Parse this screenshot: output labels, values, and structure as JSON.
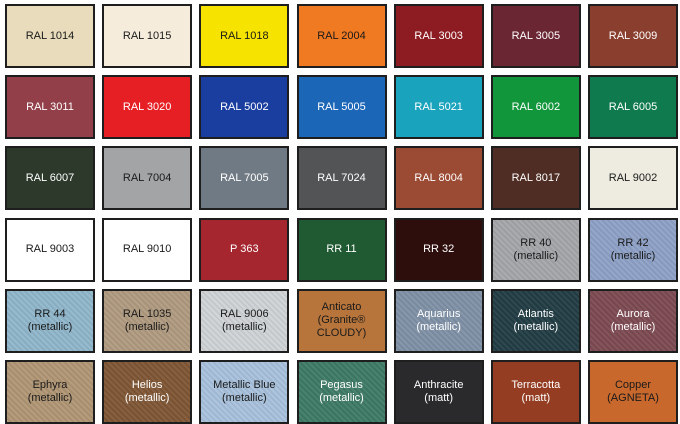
{
  "swatches": [
    {
      "label": "RAL 1014",
      "color": "#e8dcbc",
      "text": "dark"
    },
    {
      "label": "RAL 1015",
      "color": "#f5ecdc",
      "text": "dark"
    },
    {
      "label": "RAL 1018",
      "color": "#f7e300",
      "text": "dark"
    },
    {
      "label": "RAL 2004",
      "color": "#ef7a22",
      "text": "dark"
    },
    {
      "label": "RAL 3003",
      "color": "#8c1b22",
      "text": "light"
    },
    {
      "label": "RAL 3005",
      "color": "#6a2632",
      "text": "light"
    },
    {
      "label": "RAL 3009",
      "color": "#8a3e2e",
      "text": "light"
    },
    {
      "label": "RAL 3011",
      "color": "#933f4a",
      "text": "light"
    },
    {
      "label": "RAL 3020",
      "color": "#e61f24",
      "text": "light"
    },
    {
      "label": "RAL 5002",
      "color": "#1a3ea0",
      "text": "light"
    },
    {
      "label": "RAL 5005",
      "color": "#1c66b8",
      "text": "light"
    },
    {
      "label": "RAL 5021",
      "color": "#1aa3bd",
      "text": "light"
    },
    {
      "label": "RAL 6002",
      "color": "#12963b",
      "text": "light"
    },
    {
      "label": "RAL 6005",
      "color": "#0f7a4e",
      "text": "light"
    },
    {
      "label": "RAL 6007",
      "color": "#2d3a2b",
      "text": "light"
    },
    {
      "label": "RAL 7004",
      "color": "#a2a4a6",
      "text": "dark"
    },
    {
      "label": "RAL 7005",
      "color": "#707a84",
      "text": "light"
    },
    {
      "label": "RAL 7024",
      "color": "#535456",
      "text": "light"
    },
    {
      "label": "RAL 8004",
      "color": "#9b4a33",
      "text": "light"
    },
    {
      "label": "RAL 8017",
      "color": "#4f2d24",
      "text": "light"
    },
    {
      "label": "RAL 9002",
      "color": "#eeece0",
      "text": "dark"
    },
    {
      "label": "RAL 9003",
      "color": "#ffffff",
      "text": "dark"
    },
    {
      "label": "RAL 9010",
      "color": "#ffffff",
      "text": "dark"
    },
    {
      "label": "P 363",
      "color": "#a5262f",
      "text": "light"
    },
    {
      "label": "RR 11",
      "color": "#1f5a32",
      "text": "light"
    },
    {
      "label": "RR 32",
      "color": "#2e0d0d",
      "text": "light"
    },
    {
      "label": "RR 40\n(metallic)",
      "color": "#a4a6a9",
      "text": "dark"
    },
    {
      "label": "RR 42\n(metallic)",
      "color": "#8ea1c6",
      "text": "dark"
    },
    {
      "label": "RR 44\n(metallic)",
      "color": "#8fb6cb",
      "text": "dark"
    },
    {
      "label": "RAL 1035\n(metallic)",
      "color": "#b09a80",
      "text": "dark"
    },
    {
      "label": "RAL 9006\n(metallic)",
      "color": "#cfd3d6",
      "text": "dark"
    },
    {
      "label": "Anticato\n(Granite®\nCLOUDY)",
      "color": "#b8753b",
      "text": "dark"
    },
    {
      "label": "Aquarius\n(metallic)",
      "color": "#7f90a6",
      "text": "light"
    },
    {
      "label": "Atlantis\n(metallic)",
      "color": "#223d44",
      "text": "light"
    },
    {
      "label": "Aurora\n(metallic)",
      "color": "#7d4a52",
      "text": "light"
    },
    {
      "label": "Ephyra\n(metallic)",
      "color": "#b09674",
      "text": "dark"
    },
    {
      "label": "Helios\n(metallic)",
      "color": "#7e5634",
      "text": "light"
    },
    {
      "label": "Metallic Blue\n(metallic)",
      "color": "#a8c1dc",
      "text": "dark"
    },
    {
      "label": "Pegasus\n(metallic)",
      "color": "#3f7a67",
      "text": "light"
    },
    {
      "label": "Anthracite\n(matt)",
      "color": "#2a2a2c",
      "text": "light"
    },
    {
      "label": "Terracotta\n(matt)",
      "color": "#943d22",
      "text": "light"
    },
    {
      "label": "Copper\n(AGNETA)",
      "color": "#c8682c",
      "text": "dark"
    }
  ]
}
